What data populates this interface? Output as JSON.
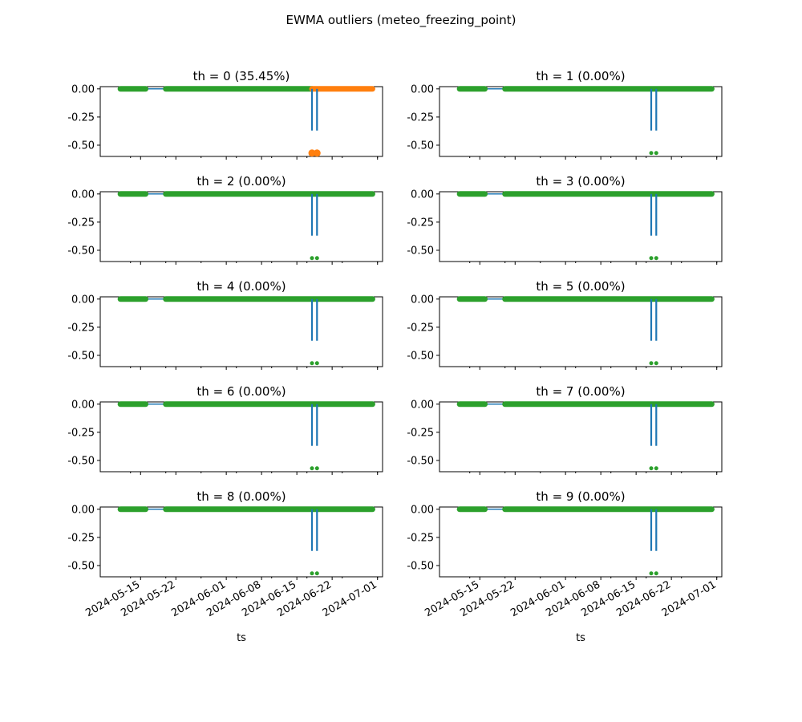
{
  "figure": {
    "title": "EWMA outliers (meteo_freezing_point)"
  },
  "colors": {
    "series_line": "#1f77b4",
    "outlier": "#ff7f0e",
    "inlier": "#2ca02c",
    "axis": "#000000",
    "background": "#ffffff"
  },
  "chart_data": [
    {
      "type": "scatter",
      "title": "th = 0 (35.45%)",
      "xlabel": "",
      "ylabel": "",
      "ylim": [
        -0.6,
        0.02
      ],
      "yticks": [
        "0.00",
        "-0.25",
        "-0.50"
      ],
      "yticks_values": [
        0,
        -0.25,
        -0.5
      ],
      "x_range": [
        "2024-05-07",
        "2024-07-02"
      ],
      "xticks": [
        "2024-05-15",
        "2024-05-22",
        "2024-06-01",
        "2024-06-08",
        "2024-06-15",
        "2024-06-22",
        "2024-07-01"
      ],
      "xticks_visible": false,
      "series": [
        {
          "segments": [
            [
              "2024-05-11",
              "2024-05-16"
            ],
            [
              "2024-05-20",
              "2024-06-18"
            ]
          ],
          "value": 0.0,
          "marker": "inlier"
        },
        {
          "segments": [
            [
              "2024-06-18",
              "2024-06-30"
            ]
          ],
          "value": 0.0,
          "marker": "outlier"
        },
        {
          "spikes": [
            {
              "x": "2024-06-18",
              "y": -0.57
            },
            {
              "x": "2024-06-19",
              "y": -0.57
            }
          ],
          "spike_line_to": -0.37,
          "marker": "outlier"
        }
      ],
      "outlier_share": "35.45%"
    },
    {
      "type": "scatter",
      "title": "th = 1 (0.00%)",
      "ylim": [
        -0.6,
        0.02
      ],
      "yticks": [
        "0.00",
        "-0.25",
        "-0.50"
      ],
      "yticks_values": [
        0,
        -0.25,
        -0.5
      ],
      "x_range": [
        "2024-05-07",
        "2024-07-02"
      ],
      "xticks": [
        "2024-05-15",
        "2024-05-22",
        "2024-06-01",
        "2024-06-08",
        "2024-06-15",
        "2024-06-22",
        "2024-07-01"
      ],
      "xticks_visible": false,
      "series": [
        {
          "segments": [
            [
              "2024-05-11",
              "2024-05-16"
            ],
            [
              "2024-05-20",
              "2024-06-30"
            ]
          ],
          "value": 0.0,
          "marker": "inlier"
        },
        {
          "spikes": [
            {
              "x": "2024-06-18",
              "y": -0.57
            },
            {
              "x": "2024-06-19",
              "y": -0.57
            }
          ],
          "spike_line_to": -0.37,
          "marker": "inlier"
        }
      ],
      "outlier_share": "0.00%"
    },
    {
      "type": "scatter",
      "title": "th = 2 (0.00%)",
      "ylim": [
        -0.6,
        0.02
      ],
      "yticks": [
        "0.00",
        "-0.25",
        "-0.50"
      ],
      "yticks_values": [
        0,
        -0.25,
        -0.5
      ],
      "x_range": [
        "2024-05-07",
        "2024-07-02"
      ],
      "xticks": [
        "2024-05-15",
        "2024-05-22",
        "2024-06-01",
        "2024-06-08",
        "2024-06-15",
        "2024-06-22",
        "2024-07-01"
      ],
      "xticks_visible": false,
      "series": [
        {
          "segments": [
            [
              "2024-05-11",
              "2024-05-16"
            ],
            [
              "2024-05-20",
              "2024-06-30"
            ]
          ],
          "value": 0.0,
          "marker": "inlier"
        },
        {
          "spikes": [
            {
              "x": "2024-06-18",
              "y": -0.57
            },
            {
              "x": "2024-06-19",
              "y": -0.57
            }
          ],
          "spike_line_to": -0.37,
          "marker": "inlier"
        }
      ],
      "outlier_share": "0.00%"
    },
    {
      "type": "scatter",
      "title": "th = 3 (0.00%)",
      "ylim": [
        -0.6,
        0.02
      ],
      "yticks": [
        "0.00",
        "-0.25",
        "-0.50"
      ],
      "yticks_values": [
        0,
        -0.25,
        -0.5
      ],
      "x_range": [
        "2024-05-07",
        "2024-07-02"
      ],
      "xticks": [
        "2024-05-15",
        "2024-05-22",
        "2024-06-01",
        "2024-06-08",
        "2024-06-15",
        "2024-06-22",
        "2024-07-01"
      ],
      "xticks_visible": false,
      "series": [
        {
          "segments": [
            [
              "2024-05-11",
              "2024-05-16"
            ],
            [
              "2024-05-20",
              "2024-06-30"
            ]
          ],
          "value": 0.0,
          "marker": "inlier"
        },
        {
          "spikes": [
            {
              "x": "2024-06-18",
              "y": -0.57
            },
            {
              "x": "2024-06-19",
              "y": -0.57
            }
          ],
          "spike_line_to": -0.37,
          "marker": "inlier"
        }
      ],
      "outlier_share": "0.00%"
    },
    {
      "type": "scatter",
      "title": "th = 4 (0.00%)",
      "ylim": [
        -0.6,
        0.02
      ],
      "yticks": [
        "0.00",
        "-0.25",
        "-0.50"
      ],
      "yticks_values": [
        0,
        -0.25,
        -0.5
      ],
      "x_range": [
        "2024-05-07",
        "2024-07-02"
      ],
      "xticks": [
        "2024-05-15",
        "2024-05-22",
        "2024-06-01",
        "2024-06-08",
        "2024-06-15",
        "2024-06-22",
        "2024-07-01"
      ],
      "xticks_visible": false,
      "series": [
        {
          "segments": [
            [
              "2024-05-11",
              "2024-05-16"
            ],
            [
              "2024-05-20",
              "2024-06-30"
            ]
          ],
          "value": 0.0,
          "marker": "inlier"
        },
        {
          "spikes": [
            {
              "x": "2024-06-18",
              "y": -0.57
            },
            {
              "x": "2024-06-19",
              "y": -0.57
            }
          ],
          "spike_line_to": -0.37,
          "marker": "inlier"
        }
      ],
      "outlier_share": "0.00%"
    },
    {
      "type": "scatter",
      "title": "th = 5 (0.00%)",
      "ylim": [
        -0.6,
        0.02
      ],
      "yticks": [
        "0.00",
        "-0.25",
        "-0.50"
      ],
      "yticks_values": [
        0,
        -0.25,
        -0.5
      ],
      "x_range": [
        "2024-05-07",
        "2024-07-02"
      ],
      "xticks": [
        "2024-05-15",
        "2024-05-22",
        "2024-06-01",
        "2024-06-08",
        "2024-06-15",
        "2024-06-22",
        "2024-07-01"
      ],
      "xticks_visible": false,
      "series": [
        {
          "segments": [
            [
              "2024-05-11",
              "2024-05-16"
            ],
            [
              "2024-05-20",
              "2024-06-30"
            ]
          ],
          "value": 0.0,
          "marker": "inlier"
        },
        {
          "spikes": [
            {
              "x": "2024-06-18",
              "y": -0.57
            },
            {
              "x": "2024-06-19",
              "y": -0.57
            }
          ],
          "spike_line_to": -0.37,
          "marker": "inlier"
        }
      ],
      "outlier_share": "0.00%"
    },
    {
      "type": "scatter",
      "title": "th = 6 (0.00%)",
      "ylim": [
        -0.6,
        0.02
      ],
      "yticks": [
        "0.00",
        "-0.25",
        "-0.50"
      ],
      "yticks_values": [
        0,
        -0.25,
        -0.5
      ],
      "x_range": [
        "2024-05-07",
        "2024-07-02"
      ],
      "xticks": [
        "2024-05-15",
        "2024-05-22",
        "2024-06-01",
        "2024-06-08",
        "2024-06-15",
        "2024-06-22",
        "2024-07-01"
      ],
      "xticks_visible": false,
      "series": [
        {
          "segments": [
            [
              "2024-05-11",
              "2024-05-16"
            ],
            [
              "2024-05-20",
              "2024-06-30"
            ]
          ],
          "value": 0.0,
          "marker": "inlier"
        },
        {
          "spikes": [
            {
              "x": "2024-06-18",
              "y": -0.57
            },
            {
              "x": "2024-06-19",
              "y": -0.57
            }
          ],
          "spike_line_to": -0.37,
          "marker": "inlier"
        }
      ],
      "outlier_share": "0.00%"
    },
    {
      "type": "scatter",
      "title": "th = 7 (0.00%)",
      "ylim": [
        -0.6,
        0.02
      ],
      "yticks": [
        "0.00",
        "-0.25",
        "-0.50"
      ],
      "yticks_values": [
        0,
        -0.25,
        -0.5
      ],
      "x_range": [
        "2024-05-07",
        "2024-07-02"
      ],
      "xticks": [
        "2024-05-15",
        "2024-05-22",
        "2024-06-01",
        "2024-06-08",
        "2024-06-15",
        "2024-06-22",
        "2024-07-01"
      ],
      "xticks_visible": false,
      "series": [
        {
          "segments": [
            [
              "2024-05-11",
              "2024-05-16"
            ],
            [
              "2024-05-20",
              "2024-06-30"
            ]
          ],
          "value": 0.0,
          "marker": "inlier"
        },
        {
          "spikes": [
            {
              "x": "2024-06-18",
              "y": -0.57
            },
            {
              "x": "2024-06-19",
              "y": -0.57
            }
          ],
          "spike_line_to": -0.37,
          "marker": "inlier"
        }
      ],
      "outlier_share": "0.00%"
    },
    {
      "type": "scatter",
      "title": "th = 8 (0.00%)",
      "xlabel": "ts",
      "ylim": [
        -0.6,
        0.02
      ],
      "yticks": [
        "0.00",
        "-0.25",
        "-0.50"
      ],
      "yticks_values": [
        0,
        -0.25,
        -0.5
      ],
      "x_range": [
        "2024-05-07",
        "2024-07-02"
      ],
      "xticks": [
        "2024-05-15",
        "2024-05-22",
        "2024-06-01",
        "2024-06-08",
        "2024-06-15",
        "2024-06-22",
        "2024-07-01"
      ],
      "xticks_visible": true,
      "series": [
        {
          "segments": [
            [
              "2024-05-11",
              "2024-05-16"
            ],
            [
              "2024-05-20",
              "2024-06-30"
            ]
          ],
          "value": 0.0,
          "marker": "inlier"
        },
        {
          "spikes": [
            {
              "x": "2024-06-18",
              "y": -0.57
            },
            {
              "x": "2024-06-19",
              "y": -0.57
            }
          ],
          "spike_line_to": -0.37,
          "marker": "inlier"
        }
      ],
      "outlier_share": "0.00%"
    },
    {
      "type": "scatter",
      "title": "th = 9 (0.00%)",
      "xlabel": "ts",
      "ylim": [
        -0.6,
        0.02
      ],
      "yticks": [
        "0.00",
        "-0.25",
        "-0.50"
      ],
      "yticks_values": [
        0,
        -0.25,
        -0.5
      ],
      "x_range": [
        "2024-05-07",
        "2024-07-02"
      ],
      "xticks": [
        "2024-05-15",
        "2024-05-22",
        "2024-06-01",
        "2024-06-08",
        "2024-06-15",
        "2024-06-22",
        "2024-07-01"
      ],
      "xticks_visible": true,
      "series": [
        {
          "segments": [
            [
              "2024-05-11",
              "2024-05-16"
            ],
            [
              "2024-05-20",
              "2024-06-30"
            ]
          ],
          "value": 0.0,
          "marker": "inlier"
        },
        {
          "spikes": [
            {
              "x": "2024-06-18",
              "y": -0.57
            },
            {
              "x": "2024-06-19",
              "y": -0.57
            }
          ],
          "spike_line_to": -0.37,
          "marker": "inlier"
        }
      ],
      "outlier_share": "0.00%"
    }
  ]
}
